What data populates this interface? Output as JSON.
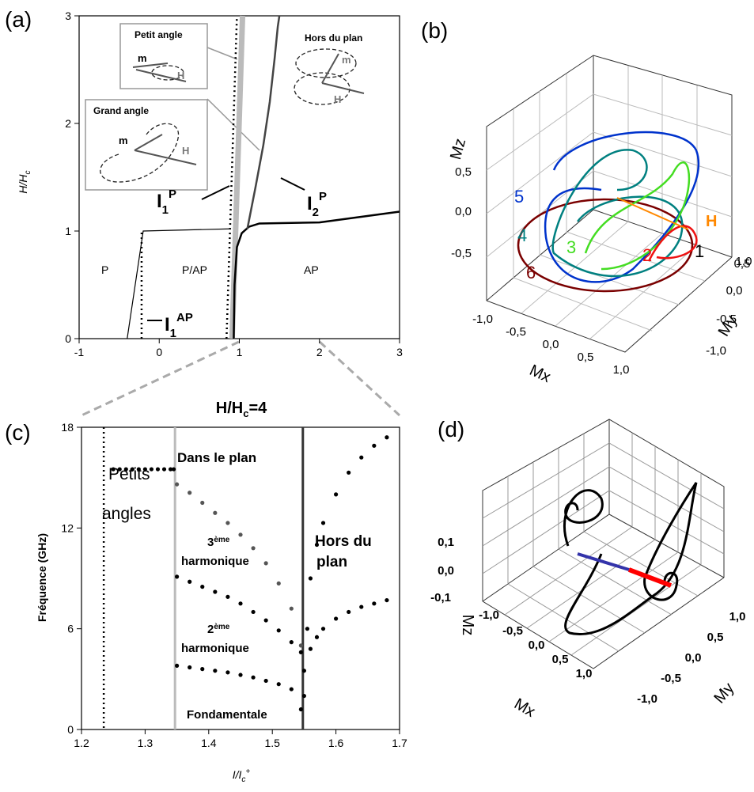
{
  "chart_data": [
    {
      "type": "line",
      "label": "(a)",
      "ylabel": "H/H",
      "ylabel_sub": "c",
      "xlim": [
        -1,
        3
      ],
      "xticks": [
        -1,
        0,
        1,
        2,
        3
      ],
      "ylim": [
        0,
        3
      ],
      "yticks": [
        0,
        1,
        2,
        3
      ],
      "series": [
        {
          "color": "#000000",
          "width": 1.2,
          "style": "solid",
          "x": [
            -0.4,
            -0.2,
            0.88
          ],
          "values": [
            0,
            1,
            1.02
          ]
        },
        {
          "color": "#000000",
          "width": 2.5,
          "style": "dotted",
          "x": [
            -0.22,
            -0.22
          ],
          "values": [
            0,
            1
          ]
        },
        {
          "color": "#bbbbbb",
          "width": 7,
          "style": "solid",
          "x": [
            0.91,
            1.04
          ],
          "values": [
            0,
            3
          ]
        },
        {
          "color": "#000000",
          "width": 2.5,
          "style": "dotted",
          "x": [
            0.84,
            0.97
          ],
          "values": [
            0,
            3
          ]
        },
        {
          "color": "#000000",
          "width": 2.5,
          "style": "solid",
          "x": [
            0.93,
            0.94,
            0.97,
            1.03,
            1.12,
            1.25,
            2,
            3
          ],
          "values": [
            0,
            0.5,
            0.85,
            0.98,
            1.04,
            1.07,
            1.08,
            1.18
          ]
        },
        {
          "color": "#444444",
          "width": 2.5,
          "style": "solid",
          "x": [
            1.1,
            1.2,
            1.3,
            1.38,
            1.44,
            1.48,
            1.5
          ],
          "values": [
            1.02,
            1.4,
            1.8,
            2.2,
            2.6,
            2.9,
            3
          ]
        }
      ],
      "annotations": {
        "regions": [
          "P",
          "P/AP",
          "AP"
        ],
        "insets": [
          "Petit angle",
          "Grand angle",
          "Hors du plan"
        ],
        "vectors": [
          "m",
          "H"
        ],
        "curves": [
          {
            "name": "I",
            "sub": "1",
            "sup": "P"
          },
          {
            "name": "I",
            "sub": "2",
            "sup": "P"
          },
          {
            "name": "I",
            "sub": "1",
            "sup": "AP"
          }
        ]
      }
    },
    {
      "type": "scatter",
      "label": "(c)",
      "title": "H/H",
      "title_sub": "c",
      "title_end": "=4",
      "xlabel": "I/I",
      "xlabel_sub": "c",
      "xlabel_sup": "+",
      "ylabel": "Fréquence (GHz)",
      "xlim": [
        1.2,
        1.7
      ],
      "xticks": [
        1.2,
        1.3,
        1.4,
        1.5,
        1.6,
        1.7
      ],
      "ylim": [
        0,
        18
      ],
      "yticks": [
        0,
        6,
        12,
        18
      ],
      "vlines": [
        {
          "x": 1.235,
          "color": "#000000",
          "style": "dotted"
        },
        {
          "x": 1.347,
          "color": "#bbbbbb",
          "style": "solid"
        },
        {
          "x": 1.548,
          "color": "#333333",
          "style": "solid"
        }
      ],
      "series": [
        {
          "color": "#000000",
          "x": [
            1.25,
            1.26,
            1.27,
            1.28,
            1.29,
            1.3,
            1.31,
            1.32,
            1.33,
            1.34,
            1.345
          ],
          "values": [
            15.5,
            15.5,
            15.5,
            15.5,
            15.5,
            15.5,
            15.5,
            15.5,
            15.5,
            15.5,
            15.5
          ]
        },
        {
          "color": "#555555",
          "x": [
            1.35,
            1.37,
            1.39,
            1.41,
            1.43,
            1.45,
            1.47,
            1.49,
            1.51,
            1.53,
            1.545
          ],
          "values": [
            14.6,
            14.1,
            13.5,
            12.9,
            12.3,
            11.6,
            10.8,
            9.9,
            8.7,
            7.2,
            5
          ]
        },
        {
          "color": "#000000",
          "x": [
            1.35,
            1.37,
            1.39,
            1.41,
            1.43,
            1.45,
            1.47,
            1.49,
            1.51,
            1.53,
            1.545
          ],
          "values": [
            9.1,
            8.8,
            8.5,
            8.2,
            7.9,
            7.5,
            7,
            6.5,
            5.9,
            5.2,
            4.6
          ]
        },
        {
          "color": "#000000",
          "x": [
            1.35,
            1.37,
            1.39,
            1.41,
            1.43,
            1.45,
            1.47,
            1.49,
            1.51,
            1.53,
            1.545
          ],
          "values": [
            3.8,
            3.7,
            3.6,
            3.5,
            3.4,
            3.25,
            3.1,
            2.9,
            2.7,
            2.4,
            1.2
          ]
        },
        {
          "color": "#000000",
          "x": [
            1.55,
            1.555,
            1.56,
            1.57,
            1.58,
            1.6,
            1.62,
            1.64,
            1.66,
            1.68
          ],
          "values": [
            2,
            6,
            9,
            11,
            12.3,
            14,
            15.3,
            16.2,
            16.9,
            17.4
          ]
        },
        {
          "color": "#000000",
          "x": [
            1.55,
            1.56,
            1.57,
            1.58,
            1.6,
            1.62,
            1.64,
            1.66,
            1.68
          ],
          "values": [
            3.5,
            4.8,
            5.5,
            6,
            6.6,
            7,
            7.3,
            7.5,
            7.7
          ]
        }
      ],
      "annotations": {
        "plan": "Dans le plan",
        "small": [
          "Petits",
          "angles"
        ],
        "out": [
          "Hors du",
          "plan"
        ],
        "h3": {
          "num": "3",
          "sup": "ème",
          "text": "harmonique"
        },
        "h2": {
          "num": "2",
          "sup": "ème",
          "text": "harmonique"
        },
        "fund": "Fondamentale"
      }
    }
  ],
  "figures": [
    {
      "label": "(b)",
      "zlabel": "Mz",
      "xlabel": "Mx",
      "ylabel": "My",
      "zticks": [
        "0,5",
        "0,0",
        "-0,5"
      ],
      "xticks": [
        "-1,0",
        "-0,5",
        "0,0",
        "0,5",
        "1,0"
      ],
      "yticks": [
        "1,0",
        "0,5",
        "0,0",
        "-0,5",
        "-1,0"
      ],
      "curve_labels": [
        "1",
        "2",
        "3",
        "4",
        "5",
        "6",
        "H"
      ]
    },
    {
      "label": "(d)",
      "zlabel": "Mz",
      "xlabel": "Mx",
      "ylabel": "My",
      "zticks": [
        "0,1",
        "0,0",
        "-0,1"
      ],
      "xticks": [
        "-1,0",
        "-0,5",
        "0,0",
        "0,5",
        "1,0"
      ],
      "yticks": [
        "1,0",
        "0,5",
        "0,0",
        "-0,5",
        "-1,0"
      ]
    }
  ]
}
